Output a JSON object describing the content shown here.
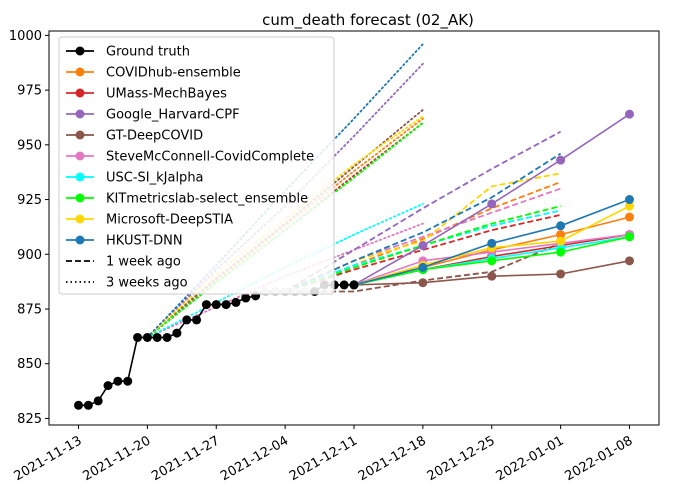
{
  "chart_data": {
    "type": "line",
    "title": "cum_death forecast (02_AK)",
    "xlabel": "",
    "ylabel": "",
    "ylim": [
      822,
      1002
    ],
    "xlim_days": [
      -3,
      59
    ],
    "x_origin_date": "2021-11-13",
    "x_ticks": [
      "2021-11-13",
      "2021-11-20",
      "2021-11-27",
      "2021-12-04",
      "2021-12-11",
      "2021-12-18",
      "2021-12-25",
      "2022-01-01",
      "2022-01-08"
    ],
    "y_ticks": [
      825,
      850,
      875,
      900,
      925,
      950,
      975,
      1000
    ],
    "grid": false,
    "legend_position": "upper-left",
    "legend_style_labels": {
      "one_week": "1 week ago",
      "three_weeks": "3 weeks ago"
    },
    "ground_truth": {
      "name": "Ground truth",
      "color": "#000000",
      "x": [
        "2021-11-13",
        "2021-11-14",
        "2021-11-15",
        "2021-11-16",
        "2021-11-17",
        "2021-11-18",
        "2021-11-19",
        "2021-11-20",
        "2021-11-21",
        "2021-11-22",
        "2021-11-23",
        "2021-11-24",
        "2021-11-25",
        "2021-11-26",
        "2021-11-27",
        "2021-11-28",
        "2021-11-29",
        "2021-11-30",
        "2021-12-01",
        "2021-12-02",
        "2021-12-03",
        "2021-12-04",
        "2021-12-05",
        "2021-12-06",
        "2021-12-07",
        "2021-12-08",
        "2021-12-09",
        "2021-12-10",
        "2021-12-11"
      ],
      "y": [
        831,
        831,
        833,
        840,
        842,
        842,
        862,
        862,
        862,
        862,
        864,
        870,
        870,
        877,
        877,
        877,
        878,
        880,
        881,
        883,
        883,
        883,
        883,
        883,
        883,
        886,
        886,
        886,
        886
      ]
    },
    "series": [
      {
        "name": "COVIDhub-ensemble",
        "color": "#ff7f0e",
        "current": {
          "x": [
            "2021-12-11",
            "2021-12-18",
            "2021-12-25",
            "2022-01-01",
            "2022-01-08"
          ],
          "y": [
            886,
            894,
            902,
            909,
            917
          ]
        },
        "one_week": {
          "x": [
            "2021-12-04",
            "2021-12-11",
            "2021-12-18",
            "2021-12-25",
            "2022-01-01"
          ],
          "y": [
            883,
            895,
            907,
            921,
            933
          ]
        },
        "three_weeks": {
          "x": [
            "2021-11-20",
            "2021-11-27",
            "2021-12-04",
            "2021-12-11",
            "2021-12-18"
          ],
          "y": [
            862,
            888,
            913,
            938,
            962
          ]
        }
      },
      {
        "name": "UMass-MechBayes",
        "color": "#d62728",
        "current": {
          "x": [
            "2021-12-11",
            "2021-12-18",
            "2021-12-25",
            "2022-01-01",
            "2022-01-08"
          ],
          "y": [
            886,
            893,
            899,
            904,
            909
          ]
        },
        "one_week": {
          "x": [
            "2021-12-04",
            "2021-12-11",
            "2021-12-18",
            "2021-12-25",
            "2022-01-01"
          ],
          "y": [
            883,
            893,
            902,
            911,
            918
          ]
        },
        "three_weeks": {
          "x": [
            "2021-11-20",
            "2021-11-27",
            "2021-12-04",
            "2021-12-11",
            "2021-12-18"
          ],
          "y": [
            862,
            887,
            911,
            936,
            960
          ]
        }
      },
      {
        "name": "Google_Harvard-CPF",
        "color": "#9467bd",
        "current": {
          "x": [
            "2021-12-11",
            "2021-12-18",
            "2021-12-25",
            "2022-01-01",
            "2022-01-08"
          ],
          "y": [
            886,
            904,
            923,
            943,
            964
          ]
        },
        "one_week": {
          "x": [
            "2021-12-04",
            "2021-12-11",
            "2021-12-18",
            "2021-12-25",
            "2022-01-01"
          ],
          "y": [
            883,
            902,
            921,
            939,
            956
          ]
        },
        "three_weeks": {
          "x": [
            "2021-11-20",
            "2021-11-27",
            "2021-12-04",
            "2021-12-11",
            "2021-12-18"
          ],
          "y": [
            862,
            893,
            922,
            954,
            987
          ]
        }
      },
      {
        "name": "GT-DeepCOVID",
        "color": "#8c564b",
        "current": {
          "x": [
            "2021-12-11",
            "2021-12-18",
            "2021-12-25",
            "2022-01-01",
            "2022-01-08"
          ],
          "y": [
            886,
            887,
            890,
            891,
            897
          ]
        },
        "one_week": {
          "x": [
            "2021-12-04",
            "2021-12-11",
            "2021-12-18",
            "2021-12-25",
            "2022-01-01"
          ],
          "y": [
            883,
            883,
            888,
            892,
            905
          ]
        },
        "three_weeks": {
          "x": [
            "2021-11-20",
            "2021-11-27",
            "2021-12-04",
            "2021-12-11",
            "2021-12-18"
          ],
          "y": [
            862,
            889,
            914,
            940,
            966
          ]
        }
      },
      {
        "name": "SteveMcConnell-CovidComplete",
        "color": "#e377c2",
        "current": {
          "x": [
            "2021-12-11",
            "2021-12-18",
            "2021-12-25",
            "2022-01-01",
            "2022-01-08"
          ],
          "y": [
            886,
            897,
            901,
            905,
            909
          ]
        },
        "one_week": {
          "x": [
            "2021-12-04",
            "2021-12-11",
            "2021-12-18",
            "2021-12-25",
            "2022-01-01"
          ],
          "y": [
            883,
            897,
            908,
            919,
            930
          ]
        },
        "three_weeks": {
          "x": [
            "2021-11-20",
            "2021-11-27",
            "2021-12-04",
            "2021-12-11",
            "2021-12-18"
          ],
          "y": [
            862,
            876,
            890,
            902,
            914
          ]
        }
      },
      {
        "name": "USC-SI_kJalpha",
        "color": "#00ffff",
        "current": {
          "x": [
            "2021-12-11",
            "2021-12-18",
            "2021-12-25",
            "2022-01-01",
            "2022-01-08"
          ],
          "y": [
            886,
            893,
            898,
            903,
            908
          ]
        },
        "one_week": {
          "x": [
            "2021-12-04",
            "2021-12-11",
            "2021-12-18",
            "2021-12-25",
            "2022-01-01"
          ],
          "y": [
            883,
            895,
            904,
            913,
            920
          ]
        },
        "three_weeks": {
          "x": [
            "2021-11-20",
            "2021-11-27",
            "2021-12-04",
            "2021-12-11",
            "2021-12-18"
          ],
          "y": [
            862,
            878,
            894,
            909,
            923
          ]
        }
      },
      {
        "name": "KITmetricslab-select_ensemble",
        "color": "#00ff00",
        "current": {
          "x": [
            "2021-12-11",
            "2021-12-18",
            "2021-12-25",
            "2022-01-01",
            "2022-01-08"
          ],
          "y": [
            886,
            893,
            897,
            901,
            908
          ]
        },
        "one_week": {
          "x": [
            "2021-12-04",
            "2021-12-11",
            "2021-12-18",
            "2021-12-25",
            "2022-01-01"
          ],
          "y": [
            883,
            894,
            904,
            914,
            922
          ]
        },
        "three_weeks": {
          "x": [
            "2021-11-20",
            "2021-11-27",
            "2021-12-04",
            "2021-12-11",
            "2021-12-18"
          ],
          "y": [
            862,
            887,
            911,
            935,
            960
          ]
        }
      },
      {
        "name": "Microsoft-DeepSTIA",
        "color": "#ffd700",
        "current": {
          "x": [
            "2021-12-11",
            "2021-12-18",
            "2021-12-25",
            "2022-01-01",
            "2022-01-08"
          ],
          "y": [
            886,
            895,
            903,
            906,
            922
          ]
        },
        "one_week": {
          "x": [
            "2021-12-04",
            "2021-12-11",
            "2021-12-18",
            "2021-12-25",
            "2022-01-01"
          ],
          "y": [
            883,
            897,
            906,
            931,
            937
          ]
        },
        "three_weeks": {
          "x": [
            "2021-11-20",
            "2021-11-27",
            "2021-12-04",
            "2021-12-11",
            "2021-12-18"
          ],
          "y": [
            862,
            891,
            916,
            941,
            963
          ]
        }
      },
      {
        "name": "HKUST-DNN",
        "color": "#1f77b4",
        "current": {
          "x": [
            "2021-12-11",
            "2021-12-18",
            "2021-12-25",
            "2022-01-01",
            "2022-01-08"
          ],
          "y": [
            886,
            894,
            905,
            913,
            925
          ]
        },
        "one_week": {
          "x": [
            "2021-12-04",
            "2021-12-11",
            "2021-12-18",
            "2021-12-25",
            "2022-01-01"
          ],
          "y": [
            883,
            897,
            910,
            926,
            946
          ]
        },
        "three_weeks": {
          "x": [
            "2021-11-20",
            "2021-11-27",
            "2021-12-04",
            "2021-12-11",
            "2021-12-18"
          ],
          "y": [
            862,
            895,
            929,
            962,
            996
          ]
        }
      }
    ]
  }
}
